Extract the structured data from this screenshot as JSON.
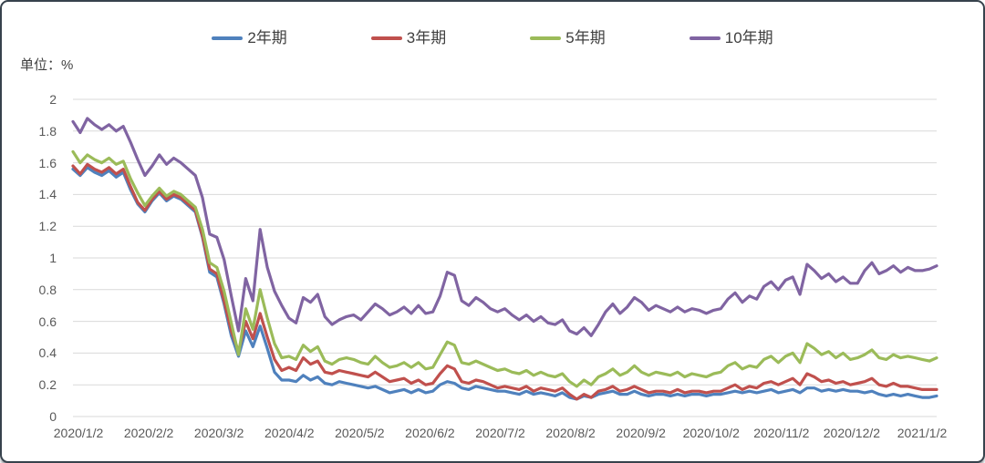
{
  "chart_data": {
    "type": "line",
    "title": "",
    "unit_label": "单位：%",
    "legend_position": "top",
    "grid": "horizontal",
    "gridline_color": "#d9d9d9",
    "axis_text_color": "#595959",
    "ylim": [
      0,
      2
    ],
    "yticks": [
      0,
      0.2,
      0.4,
      0.6,
      0.8,
      1,
      1.2,
      1.4,
      1.6,
      1.8,
      2
    ],
    "ytick_labels": [
      "0",
      "0.2",
      "0.4",
      "0.6",
      "0.8",
      "1",
      "1.2",
      "1.4",
      "1.6",
      "1.8",
      "2"
    ],
    "xtick_labels": [
      "2020/1/2",
      "2020/2/2",
      "2020/3/2",
      "2020/4/2",
      "2020/5/2",
      "2020/6/2",
      "2020/7/2",
      "2020/8/2",
      "2020/9/2",
      "2020/10/2",
      "2020/11/2",
      "2020/12/2",
      "2021/1/2"
    ],
    "x_is_daily": true,
    "series": [
      {
        "name": "2年期",
        "color": "#4F81BD",
        "values": [
          1.56,
          1.52,
          1.57,
          1.54,
          1.52,
          1.55,
          1.51,
          1.54,
          1.43,
          1.34,
          1.29,
          1.36,
          1.41,
          1.36,
          1.39,
          1.37,
          1.33,
          1.29,
          1.13,
          0.91,
          0.88,
          0.71,
          0.51,
          0.38,
          0.54,
          0.44,
          0.57,
          0.43,
          0.28,
          0.23,
          0.23,
          0.22,
          0.26,
          0.23,
          0.25,
          0.21,
          0.2,
          0.22,
          0.21,
          0.2,
          0.19,
          0.18,
          0.19,
          0.17,
          0.15,
          0.16,
          0.17,
          0.15,
          0.17,
          0.15,
          0.16,
          0.2,
          0.22,
          0.21,
          0.18,
          0.17,
          0.19,
          0.18,
          0.17,
          0.16,
          0.16,
          0.15,
          0.14,
          0.16,
          0.14,
          0.15,
          0.14,
          0.13,
          0.15,
          0.12,
          0.11,
          0.13,
          0.12,
          0.14,
          0.15,
          0.16,
          0.14,
          0.14,
          0.16,
          0.14,
          0.13,
          0.14,
          0.14,
          0.13,
          0.14,
          0.13,
          0.14,
          0.14,
          0.13,
          0.14,
          0.14,
          0.15,
          0.16,
          0.15,
          0.16,
          0.15,
          0.16,
          0.17,
          0.15,
          0.16,
          0.17,
          0.15,
          0.18,
          0.18,
          0.16,
          0.17,
          0.16,
          0.17,
          0.16,
          0.16,
          0.15,
          0.16,
          0.14,
          0.13,
          0.14,
          0.13,
          0.14,
          0.13,
          0.12,
          0.12,
          0.13
        ]
      },
      {
        "name": "3年期",
        "color": "#C0504D",
        "values": [
          1.58,
          1.53,
          1.59,
          1.56,
          1.54,
          1.57,
          1.53,
          1.56,
          1.45,
          1.35,
          1.3,
          1.37,
          1.42,
          1.37,
          1.4,
          1.38,
          1.34,
          1.3,
          1.14,
          0.93,
          0.9,
          0.73,
          0.54,
          0.41,
          0.6,
          0.49,
          0.65,
          0.5,
          0.36,
          0.29,
          0.31,
          0.29,
          0.37,
          0.33,
          0.35,
          0.28,
          0.27,
          0.29,
          0.28,
          0.27,
          0.26,
          0.25,
          0.28,
          0.25,
          0.22,
          0.23,
          0.24,
          0.21,
          0.23,
          0.2,
          0.21,
          0.27,
          0.32,
          0.3,
          0.22,
          0.21,
          0.23,
          0.22,
          0.2,
          0.18,
          0.19,
          0.18,
          0.17,
          0.19,
          0.16,
          0.18,
          0.17,
          0.16,
          0.18,
          0.14,
          0.11,
          0.14,
          0.12,
          0.16,
          0.17,
          0.19,
          0.16,
          0.17,
          0.19,
          0.17,
          0.15,
          0.16,
          0.16,
          0.15,
          0.17,
          0.15,
          0.16,
          0.16,
          0.15,
          0.16,
          0.16,
          0.18,
          0.2,
          0.17,
          0.19,
          0.18,
          0.21,
          0.22,
          0.2,
          0.22,
          0.24,
          0.2,
          0.27,
          0.25,
          0.22,
          0.23,
          0.21,
          0.22,
          0.2,
          0.21,
          0.22,
          0.24,
          0.2,
          0.19,
          0.21,
          0.19,
          0.19,
          0.18,
          0.17,
          0.17,
          0.17
        ]
      },
      {
        "name": "5年期",
        "color": "#9BBB59",
        "values": [
          1.67,
          1.6,
          1.65,
          1.62,
          1.6,
          1.63,
          1.59,
          1.61,
          1.5,
          1.41,
          1.33,
          1.39,
          1.44,
          1.39,
          1.42,
          1.4,
          1.36,
          1.32,
          1.18,
          0.97,
          0.94,
          0.79,
          0.59,
          0.39,
          0.68,
          0.55,
          0.8,
          0.62,
          0.46,
          0.37,
          0.38,
          0.36,
          0.45,
          0.41,
          0.44,
          0.35,
          0.33,
          0.36,
          0.37,
          0.36,
          0.34,
          0.33,
          0.38,
          0.34,
          0.31,
          0.32,
          0.34,
          0.31,
          0.34,
          0.3,
          0.31,
          0.39,
          0.47,
          0.45,
          0.34,
          0.33,
          0.35,
          0.33,
          0.31,
          0.29,
          0.3,
          0.28,
          0.27,
          0.29,
          0.26,
          0.28,
          0.26,
          0.25,
          0.27,
          0.22,
          0.19,
          0.23,
          0.2,
          0.25,
          0.27,
          0.3,
          0.26,
          0.28,
          0.32,
          0.28,
          0.26,
          0.28,
          0.27,
          0.26,
          0.28,
          0.25,
          0.27,
          0.26,
          0.25,
          0.27,
          0.28,
          0.32,
          0.34,
          0.3,
          0.32,
          0.31,
          0.36,
          0.38,
          0.34,
          0.38,
          0.4,
          0.34,
          0.46,
          0.43,
          0.39,
          0.41,
          0.37,
          0.4,
          0.36,
          0.37,
          0.39,
          0.42,
          0.37,
          0.36,
          0.39,
          0.37,
          0.38,
          0.37,
          0.36,
          0.35,
          0.37
        ]
      },
      {
        "name": "10年期",
        "color": "#8064A2",
        "values": [
          1.86,
          1.79,
          1.88,
          1.84,
          1.81,
          1.84,
          1.8,
          1.83,
          1.73,
          1.62,
          1.52,
          1.58,
          1.65,
          1.59,
          1.63,
          1.6,
          1.56,
          1.52,
          1.38,
          1.15,
          1.13,
          0.99,
          0.76,
          0.54,
          0.87,
          0.73,
          1.18,
          0.94,
          0.79,
          0.7,
          0.62,
          0.59,
          0.75,
          0.72,
          0.77,
          0.63,
          0.58,
          0.61,
          0.63,
          0.64,
          0.61,
          0.66,
          0.71,
          0.68,
          0.64,
          0.66,
          0.69,
          0.65,
          0.7,
          0.65,
          0.66,
          0.76,
          0.91,
          0.89,
          0.73,
          0.7,
          0.75,
          0.72,
          0.68,
          0.66,
          0.68,
          0.64,
          0.61,
          0.64,
          0.6,
          0.63,
          0.59,
          0.58,
          0.61,
          0.54,
          0.52,
          0.56,
          0.51,
          0.58,
          0.66,
          0.71,
          0.65,
          0.69,
          0.75,
          0.72,
          0.67,
          0.7,
          0.68,
          0.66,
          0.69,
          0.66,
          0.68,
          0.67,
          0.65,
          0.67,
          0.68,
          0.74,
          0.78,
          0.72,
          0.76,
          0.74,
          0.82,
          0.85,
          0.8,
          0.86,
          0.88,
          0.77,
          0.96,
          0.92,
          0.87,
          0.9,
          0.85,
          0.88,
          0.84,
          0.84,
          0.92,
          0.97,
          0.9,
          0.92,
          0.95,
          0.91,
          0.94,
          0.92,
          0.92,
          0.93,
          0.95
        ]
      }
    ]
  }
}
